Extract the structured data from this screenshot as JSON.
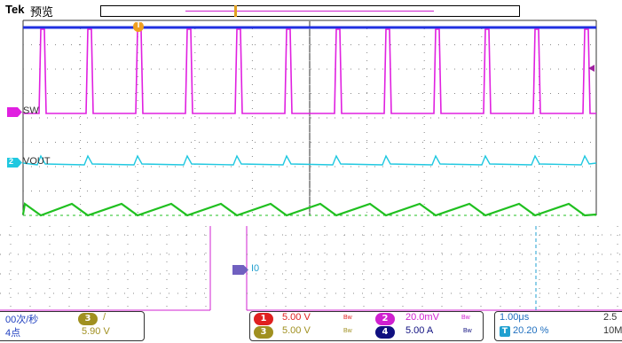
{
  "header": {
    "brand": "Tek",
    "mode": "预览",
    "trigger_marker": "T"
  },
  "channels": {
    "sw": {
      "label": "SW",
      "number": "1",
      "color": "#e020e0"
    },
    "vout": {
      "label": "VOUT",
      "number": "2",
      "color": "#20c8e0"
    },
    "i0": {
      "label": "I0",
      "color": "#7060c0"
    },
    "inductor": {
      "color": "#20c020"
    },
    "ch1": {
      "color": "#2030e0"
    }
  },
  "status": {
    "acq_rate": "00次/秒",
    "points": "4点",
    "trigger_channel": "3",
    "trigger_slope": "/",
    "trigger_level": "5.90 V",
    "ch1_scale": "5.00 V",
    "ch3_scale": "5.00 V",
    "ch2_scale": "20.0mV",
    "ch4_scale": "5.00 A",
    "bw_label": "Bw",
    "timebase": "1.00μs",
    "trigger_pos": "20.20 %",
    "sample_rate_a": "2.5",
    "sample_rate_b": "10M",
    "ch1_num": "1",
    "ch2_num": "2",
    "ch3_num": "3",
    "ch4_num": "4",
    "trig_icon": "T"
  },
  "colors": {
    "ch1": "#e02020",
    "ch2": "#d020d0",
    "ch3": "#a09020",
    "ch4": "#101080",
    "grid": "#888888"
  }
}
